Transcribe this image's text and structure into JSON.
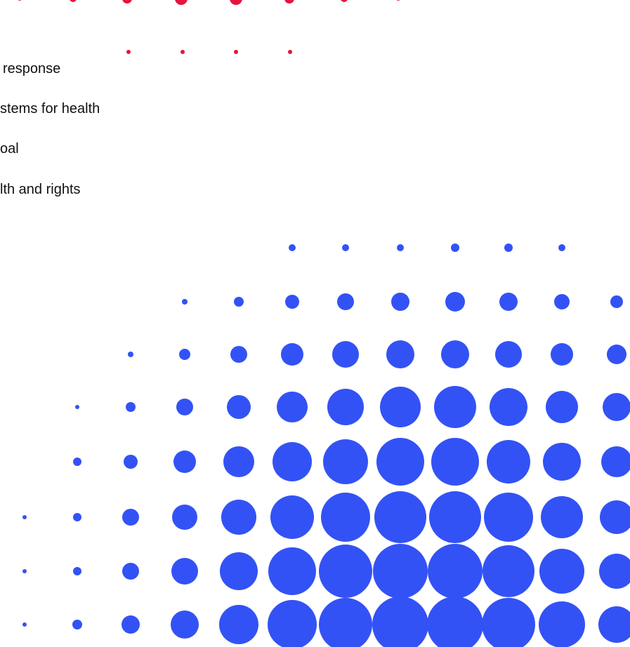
{
  "text_lines": [
    " response",
    "stems for health",
    "oal",
    "lth and rights"
  ],
  "colors": {
    "red_dots": "#e8133f",
    "blue_dots": "#3352f5",
    "text": "#111111",
    "background": "#ffffff"
  }
}
